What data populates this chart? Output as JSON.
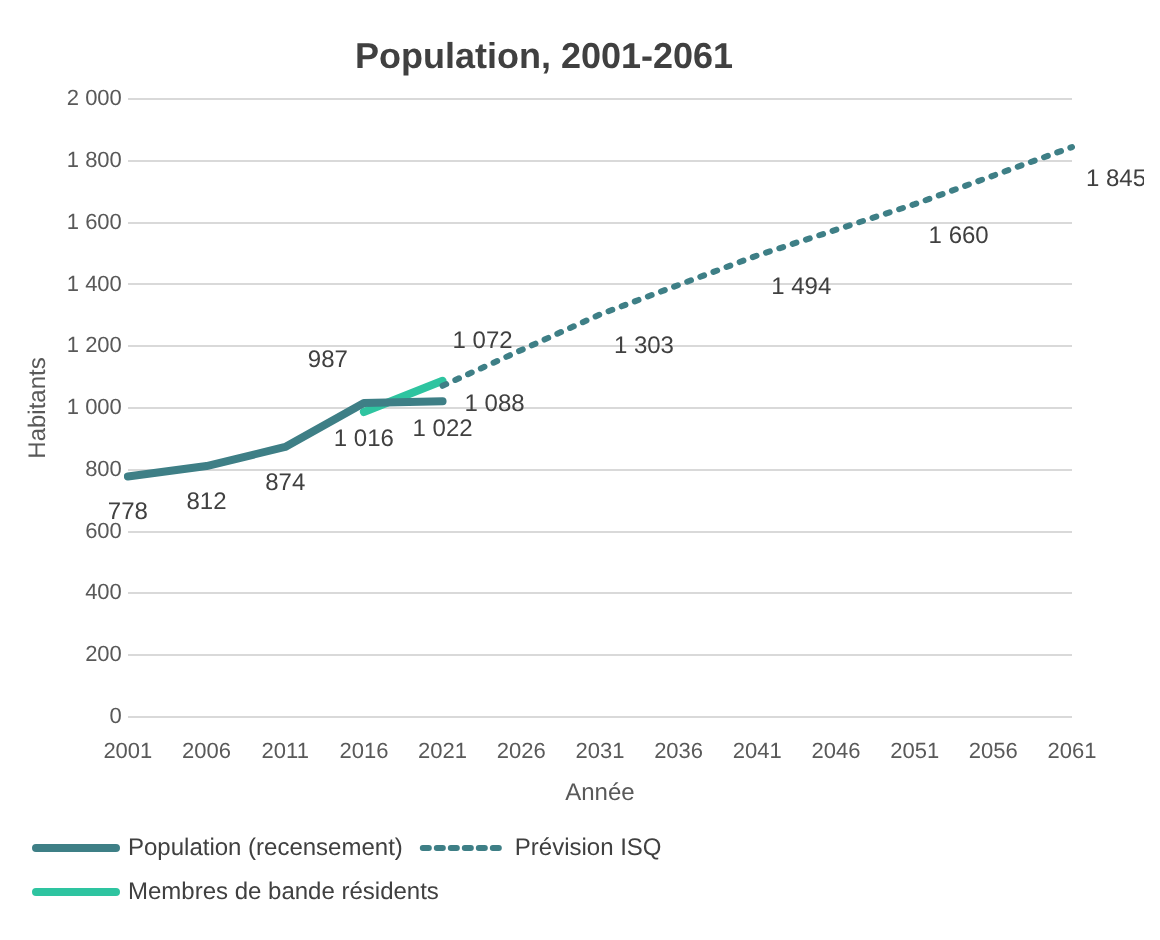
{
  "chart_data": {
    "type": "line",
    "title": "Population, 2001-2061",
    "xlabel": "Année",
    "ylabel": "Habitants",
    "categories": [
      "2001",
      "2006",
      "2011",
      "2016",
      "2021",
      "2026",
      "2031",
      "2036",
      "2041",
      "2046",
      "2051",
      "2056",
      "2061"
    ],
    "series": [
      {
        "name": "Population (recensement)",
        "color": "#3e7f86",
        "line_style": "solid",
        "values": [
          778,
          812,
          874,
          1016,
          1022,
          null,
          null,
          null,
          null,
          null,
          null,
          null,
          null
        ],
        "value_labels": [
          "778",
          "812",
          "874",
          "1 016",
          "1 022",
          null,
          null,
          null,
          null,
          null,
          null,
          null,
          null
        ]
      },
      {
        "name": "Prévision ISQ",
        "color": "#3e7f86",
        "line_style": "dotted",
        "values": [
          null,
          null,
          null,
          null,
          1072,
          null,
          1303,
          null,
          1494,
          null,
          1660,
          null,
          1845
        ],
        "value_labels": [
          null,
          null,
          null,
          null,
          "1 072",
          null,
          "1 303",
          null,
          "1 494",
          null,
          "1 660",
          null,
          "1 845"
        ]
      },
      {
        "name": "Membres de bande résidents",
        "color": "#2ec4a0",
        "line_style": "solid",
        "values": [
          null,
          null,
          null,
          987,
          1088,
          null,
          null,
          null,
          null,
          null,
          null,
          null,
          null
        ],
        "value_labels": [
          null,
          null,
          null,
          "987",
          "1 088",
          null,
          null,
          null,
          null,
          null,
          null,
          null,
          null
        ]
      }
    ],
    "ylim": [
      0,
      2000
    ],
    "yticks": [
      0,
      200,
      400,
      600,
      800,
      {
        "value": 1000,
        "label": "1 000"
      },
      {
        "value": 1200,
        "label": "1 200"
      },
      {
        "value": 1400,
        "label": "1 400"
      },
      {
        "value": 1600,
        "label": "1 600"
      },
      {
        "value": 1800,
        "label": "1 800"
      },
      {
        "value": 2000,
        "label": "2 000"
      }
    ],
    "grid": "y",
    "legend": "bottom",
    "marker": "none"
  }
}
